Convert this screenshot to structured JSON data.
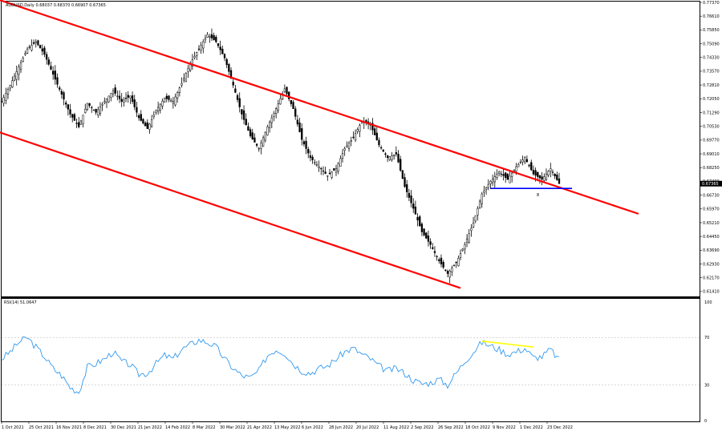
{
  "window": {
    "price_header": "AUDUSD,Daily  0.68037 0.68370 0.66907 0.67365",
    "rsi_header": "RSI(14) 51.0647"
  },
  "chart_data": [
    {
      "type": "candlestick",
      "symbol": "AUDUSD",
      "timeframe": "Daily",
      "ohlc_last": {
        "open": 0.68037,
        "high": 0.6837,
        "low": 0.66907,
        "close": 0.67365
      },
      "current_price_label": "0.67365",
      "ylim": [
        0.6114,
        0.7737
      ],
      "y_ticks": [
        "0.77370",
        "0.76610",
        "0.75850",
        "0.75090",
        "0.74330",
        "0.73570",
        "0.72810",
        "0.72050",
        "0.71290",
        "0.70530",
        "0.69770",
        "0.69010",
        "0.68250",
        "0.67490",
        "0.66730",
        "0.65970",
        "0.65210",
        "0.64450",
        "0.63690",
        "0.62930",
        "0.62170",
        "0.61410"
      ],
      "x_ticks": [
        "1 Oct 2021",
        "25 Oct 2021",
        "16 Nov 2021",
        "8 Dec 2021",
        "30 Dec 2021",
        "21 Jan 2022",
        "14 Feb 2022",
        "8 Mar 2022",
        "30 Mar 2022",
        "21 Apr 2022",
        "13 May 2022",
        "6 Jun 2022",
        "28 Jun 2022",
        "20 Jul 2022",
        "11 Aug 2022",
        "2 Sep 2022",
        "26 Sep 2022",
        "18 Oct 2022",
        "9 Nov 2022",
        "1 Dec 2022",
        "23 Dec 2022"
      ],
      "price_path": [
        [
          0,
          0.719
        ],
        [
          4,
          0.728
        ],
        [
          8,
          0.738
        ],
        [
          12,
          0.748
        ],
        [
          16,
          0.752
        ],
        [
          20,
          0.745
        ],
        [
          24,
          0.734
        ],
        [
          28,
          0.723
        ],
        [
          32,
          0.712
        ],
        [
          36,
          0.705
        ],
        [
          40,
          0.718
        ],
        [
          44,
          0.713
        ],
        [
          48,
          0.719
        ],
        [
          52,
          0.725
        ],
        [
          56,
          0.719
        ],
        [
          60,
          0.722
        ],
        [
          64,
          0.71
        ],
        [
          68,
          0.704
        ],
        [
          72,
          0.714
        ],
        [
          76,
          0.721
        ],
        [
          80,
          0.719
        ],
        [
          84,
          0.729
        ],
        [
          88,
          0.74
        ],
        [
          92,
          0.748
        ],
        [
          96,
          0.756
        ],
        [
          100,
          0.752
        ],
        [
          104,
          0.743
        ],
        [
          108,
          0.728
        ],
        [
          112,
          0.712
        ],
        [
          116,
          0.7
        ],
        [
          120,
          0.693
        ],
        [
          124,
          0.705
        ],
        [
          128,
          0.715
        ],
        [
          132,
          0.726
        ],
        [
          136,
          0.715
        ],
        [
          140,
          0.698
        ],
        [
          144,
          0.688
        ],
        [
          148,
          0.683
        ],
        [
          152,
          0.678
        ],
        [
          156,
          0.682
        ],
        [
          160,
          0.693
        ],
        [
          164,
          0.699
        ],
        [
          168,
          0.708
        ],
        [
          172,
          0.706
        ],
        [
          176,
          0.695
        ],
        [
          180,
          0.688
        ],
        [
          184,
          0.69
        ],
        [
          188,
          0.672
        ],
        [
          192,
          0.66
        ],
        [
          196,
          0.647
        ],
        [
          200,
          0.64
        ],
        [
          204,
          0.631
        ],
        [
          208,
          0.624
        ],
        [
          212,
          0.63
        ],
        [
          216,
          0.64
        ],
        [
          220,
          0.652
        ],
        [
          224,
          0.668
        ],
        [
          228,
          0.675
        ],
        [
          232,
          0.68
        ],
        [
          236,
          0.676
        ],
        [
          240,
          0.683
        ],
        [
          244,
          0.688
        ],
        [
          248,
          0.679
        ],
        [
          252,
          0.676
        ],
        [
          256,
          0.682
        ],
        [
          260,
          0.6737
        ]
      ],
      "channel_lines": [
        {
          "name": "upper",
          "color": "#ff0000",
          "points": [
            [
              -8,
              0.7778
            ],
            [
              297,
              0.657
            ]
          ]
        },
        {
          "name": "lower",
          "color": "#ff0000",
          "points": [
            [
              -8,
              0.7048
            ],
            [
              214,
              0.616
            ]
          ]
        }
      ],
      "support_line": {
        "color": "#0000ff",
        "value": 0.671,
        "x_from": 228,
        "x_to": 266
      },
      "annotation": {
        "text": "8",
        "color": "#ff6666"
      }
    },
    {
      "type": "line",
      "indicator": "RSI(14)",
      "ylim": [
        0,
        100
      ],
      "y_ticks": [
        "100",
        "70",
        "30",
        "0"
      ],
      "levels": [
        70,
        30
      ],
      "series": [
        {
          "color": "#3399ee",
          "values": [
            [
              0,
              52
            ],
            [
              4,
              58
            ],
            [
              8,
              66
            ],
            [
              12,
              70
            ],
            [
              16,
              62
            ],
            [
              20,
              54
            ],
            [
              24,
              44
            ],
            [
              28,
              38
            ],
            [
              32,
              28
            ],
            [
              36,
              24
            ],
            [
              40,
              45
            ],
            [
              44,
              48
            ],
            [
              48,
              52
            ],
            [
              52,
              58
            ],
            [
              56,
              50
            ],
            [
              60,
              47
            ],
            [
              64,
              39
            ],
            [
              68,
              40
            ],
            [
              72,
              48
            ],
            [
              76,
              55
            ],
            [
              80,
              52
            ],
            [
              84,
              60
            ],
            [
              88,
              64
            ],
            [
              92,
              68
            ],
            [
              96,
              66
            ],
            [
              100,
              62
            ],
            [
              104,
              52
            ],
            [
              108,
              44
            ],
            [
              112,
              38
            ],
            [
              116,
              36
            ],
            [
              120,
              42
            ],
            [
              124,
              55
            ],
            [
              128,
              60
            ],
            [
              132,
              57
            ],
            [
              136,
              48
            ],
            [
              140,
              42
            ],
            [
              144,
              40
            ],
            [
              148,
              44
            ],
            [
              152,
              46
            ],
            [
              156,
              52
            ],
            [
              160,
              58
            ],
            [
              164,
              61
            ],
            [
              168,
              56
            ],
            [
              172,
              52
            ],
            [
              176,
              46
            ],
            [
              180,
              42
            ],
            [
              184,
              44
            ],
            [
              188,
              40
            ],
            [
              192,
              34
            ],
            [
              196,
              31
            ],
            [
              200,
              32
            ],
            [
              204,
              35
            ],
            [
              208,
              30
            ],
            [
              212,
              40
            ],
            [
              216,
              50
            ],
            [
              220,
              58
            ],
            [
              224,
              66
            ],
            [
              228,
              63
            ],
            [
              232,
              60
            ],
            [
              236,
              56
            ],
            [
              240,
              58
            ],
            [
              244,
              61
            ],
            [
              248,
              53
            ],
            [
              252,
              54
            ],
            [
              256,
              60
            ],
            [
              260,
              51
            ]
          ]
        },
        {
          "color": "#ffff00",
          "values": [
            [
              224,
              67
            ],
            [
              248,
              62
            ]
          ]
        }
      ]
    }
  ]
}
